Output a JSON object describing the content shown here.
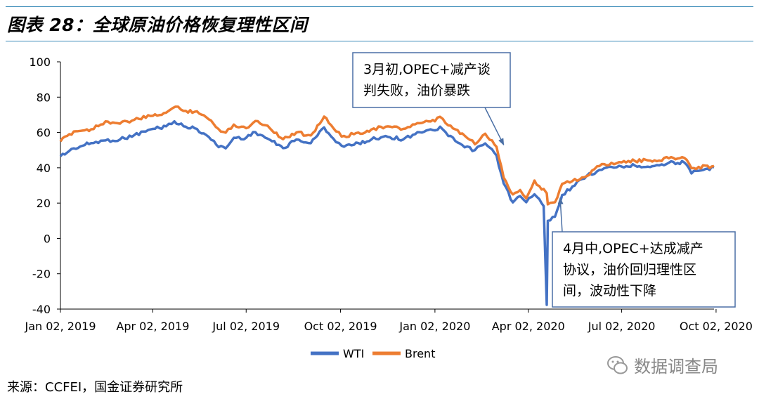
{
  "header": {
    "title": "图表 28：全球原油价格恢复理性区间"
  },
  "footer": {
    "source": "来源：CCFEI，国金证券研究所",
    "watermark": "数据调查局"
  },
  "colors": {
    "rule": "#3b8bb8",
    "wti": "#4472c4",
    "brent": "#ed7d31",
    "annotation_border": "#4a6fa5"
  },
  "chart_data": {
    "type": "line",
    "title": "",
    "xlabel": "",
    "ylabel": "",
    "ylim": [
      -40,
      100
    ],
    "yticks": [
      100,
      80,
      60,
      40,
      20,
      0,
      -20,
      -40
    ],
    "xticks": [
      "Jan 02, 2019",
      "Apr 02, 2019",
      "Jul 02, 2019",
      "Oct 02, 2019",
      "Jan 02, 2020",
      "Apr 02, 2020",
      "Jul 02, 2020",
      "Oct 02, 2020"
    ],
    "x_range": [
      "2019-01-02",
      "2020-09-30"
    ],
    "grid": false,
    "legend_position": "bottom",
    "series": [
      {
        "name": "WTI",
        "color": "#4472c4",
        "points": [
          [
            "2019-01-02",
            46.5
          ],
          [
            "2019-01-15",
            51
          ],
          [
            "2019-02-01",
            54
          ],
          [
            "2019-02-15",
            55.5
          ],
          [
            "2019-03-01",
            56
          ],
          [
            "2019-03-15",
            58.5
          ],
          [
            "2019-04-02",
            62
          ],
          [
            "2019-04-15",
            63.5
          ],
          [
            "2019-04-23",
            66.3
          ],
          [
            "2019-05-02",
            63.5
          ],
          [
            "2019-05-15",
            62
          ],
          [
            "2019-05-24",
            58.6
          ],
          [
            "2019-06-03",
            53
          ],
          [
            "2019-06-12",
            51
          ],
          [
            "2019-06-20",
            57
          ],
          [
            "2019-07-02",
            57
          ],
          [
            "2019-07-11",
            60.2
          ],
          [
            "2019-07-23",
            56.5
          ],
          [
            "2019-08-07",
            51.1
          ],
          [
            "2019-08-20",
            56
          ],
          [
            "2019-09-03",
            53.9
          ],
          [
            "2019-09-16",
            62.9
          ],
          [
            "2019-09-25",
            56.5
          ],
          [
            "2019-10-03",
            52.5
          ],
          [
            "2019-10-15",
            53
          ],
          [
            "2019-11-01",
            56
          ],
          [
            "2019-11-15",
            58
          ],
          [
            "2019-12-02",
            56
          ],
          [
            "2019-12-16",
            60.2
          ],
          [
            "2020-01-02",
            61.2
          ],
          [
            "2020-01-07",
            63.3
          ],
          [
            "2020-01-15",
            58
          ],
          [
            "2020-01-31",
            51.6
          ],
          [
            "2020-02-10",
            50
          ],
          [
            "2020-02-20",
            53.8
          ],
          [
            "2020-03-02",
            47
          ],
          [
            "2020-03-09",
            31.1
          ],
          [
            "2020-03-18",
            20.4
          ],
          [
            "2020-03-25",
            24
          ],
          [
            "2020-03-31",
            20.5
          ],
          [
            "2020-04-08",
            25
          ],
          [
            "2020-04-15",
            19.9
          ],
          [
            "2020-04-17",
            18.3
          ],
          [
            "2020-04-20",
            -37.6
          ],
          [
            "2020-04-21",
            10.0
          ],
          [
            "2020-04-28",
            12.3
          ],
          [
            "2020-05-05",
            24.6
          ],
          [
            "2020-05-15",
            29.4
          ],
          [
            "2020-05-29",
            35.5
          ],
          [
            "2020-06-08",
            38
          ],
          [
            "2020-06-22",
            40.5
          ],
          [
            "2020-07-02",
            40.7
          ],
          [
            "2020-07-15",
            41.2
          ],
          [
            "2020-08-03",
            41
          ],
          [
            "2020-08-17",
            42.9
          ],
          [
            "2020-09-01",
            43
          ],
          [
            "2020-09-08",
            36.8
          ],
          [
            "2020-09-15",
            38.3
          ],
          [
            "2020-09-30",
            40.2
          ]
        ]
      },
      {
        "name": "Brent",
        "color": "#ed7d31",
        "points": [
          [
            "2019-01-02",
            54.9
          ],
          [
            "2019-01-15",
            60.6
          ],
          [
            "2019-02-01",
            61.8
          ],
          [
            "2019-02-15",
            66.3
          ],
          [
            "2019-03-01",
            65
          ],
          [
            "2019-03-15",
            67.2
          ],
          [
            "2019-04-02",
            69.4
          ],
          [
            "2019-04-15",
            71.2
          ],
          [
            "2019-04-24",
            74.6
          ],
          [
            "2019-05-02",
            72.2
          ],
          [
            "2019-05-15",
            72
          ],
          [
            "2019-05-24",
            68.7
          ],
          [
            "2019-06-05",
            62
          ],
          [
            "2019-06-12",
            59.9
          ],
          [
            "2019-06-20",
            64.5
          ],
          [
            "2019-07-02",
            62.4
          ],
          [
            "2019-07-11",
            66.5
          ],
          [
            "2019-07-23",
            63.8
          ],
          [
            "2019-08-07",
            56.2
          ],
          [
            "2019-08-20",
            60
          ],
          [
            "2019-09-03",
            58.3
          ],
          [
            "2019-09-16",
            69
          ],
          [
            "2019-09-25",
            62.4
          ],
          [
            "2019-10-03",
            57.7
          ],
          [
            "2019-10-15",
            59
          ],
          [
            "2019-11-01",
            61.7
          ],
          [
            "2019-11-15",
            63.3
          ],
          [
            "2019-12-02",
            62
          ],
          [
            "2019-12-16",
            65.3
          ],
          [
            "2020-01-02",
            66.3
          ],
          [
            "2020-01-07",
            68.9
          ],
          [
            "2020-01-15",
            64
          ],
          [
            "2020-01-31",
            58.2
          ],
          [
            "2020-02-10",
            53.3
          ],
          [
            "2020-02-20",
            59.3
          ],
          [
            "2020-03-02",
            51.9
          ],
          [
            "2020-03-09",
            34.4
          ],
          [
            "2020-03-18",
            24.9
          ],
          [
            "2020-03-25",
            27.4
          ],
          [
            "2020-03-31",
            22.7
          ],
          [
            "2020-04-08",
            32.8
          ],
          [
            "2020-04-15",
            27.7
          ],
          [
            "2020-04-17",
            28
          ],
          [
            "2020-04-20",
            25.6
          ],
          [
            "2020-04-21",
            19.3
          ],
          [
            "2020-04-28",
            20.5
          ],
          [
            "2020-05-05",
            30.9
          ],
          [
            "2020-05-15",
            32.5
          ],
          [
            "2020-05-29",
            35.3
          ],
          [
            "2020-06-08",
            40.8
          ],
          [
            "2020-06-22",
            42.8
          ],
          [
            "2020-07-02",
            43.1
          ],
          [
            "2020-07-15",
            43.8
          ],
          [
            "2020-08-03",
            44.2
          ],
          [
            "2020-08-17",
            45.4
          ],
          [
            "2020-09-01",
            45.6
          ],
          [
            "2020-09-08",
            39.8
          ],
          [
            "2020-09-15",
            40.5
          ],
          [
            "2020-09-30",
            41
          ]
        ]
      }
    ],
    "annotations": [
      {
        "name": "annotation-march",
        "lines": [
          "3月初,OPEC+减产谈",
          "判失败，油价暴跌"
        ],
        "target_date": "2020-03-09",
        "target_value": 53
      },
      {
        "name": "annotation-april",
        "lines": [
          "4月中,OPEC+达成减产",
          "协议，油价回归理性区",
          "间，波动性下降"
        ],
        "target_date": "2020-05-03",
        "target_value": 23
      }
    ]
  }
}
